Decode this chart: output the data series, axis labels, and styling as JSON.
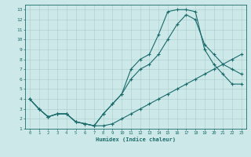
{
  "xlabel": "Humidex (Indice chaleur)",
  "bg_color": "#cde8e8",
  "line_color": "#1a6b6b",
  "grid_color": "#aacccc",
  "xlim": [
    -0.5,
    23.5
  ],
  "ylim": [
    1,
    13.5
  ],
  "xticks": [
    0,
    1,
    2,
    3,
    4,
    5,
    6,
    7,
    8,
    9,
    10,
    11,
    12,
    13,
    14,
    15,
    16,
    17,
    18,
    19,
    20,
    21,
    22,
    23
  ],
  "yticks": [
    1,
    2,
    3,
    4,
    5,
    6,
    7,
    8,
    9,
    10,
    11,
    12,
    13
  ],
  "line1_x": [
    0,
    1,
    2,
    3,
    4,
    5,
    6,
    7,
    8,
    9,
    10,
    11,
    12,
    13,
    14,
    15,
    16,
    17,
    18,
    19,
    20,
    21,
    22,
    23
  ],
  "line1_y": [
    4,
    3,
    2.2,
    2.5,
    2.5,
    1.7,
    1.5,
    1.3,
    2.5,
    3.5,
    4.5,
    7,
    8,
    8.5,
    10.5,
    12.8,
    13,
    13,
    12.8,
    9,
    7.5,
    6.5,
    5.5,
    5.5
  ],
  "line2_x": [
    0,
    1,
    2,
    3,
    4,
    5,
    6,
    7,
    8,
    9,
    10,
    11,
    12,
    13,
    14,
    15,
    16,
    17,
    18,
    19,
    20,
    21,
    22,
    23
  ],
  "line2_y": [
    4,
    3,
    2.2,
    2.5,
    2.5,
    1.7,
    1.5,
    1.3,
    1.3,
    1.5,
    2,
    2.5,
    3,
    3.5,
    4,
    4.5,
    5,
    5.5,
    6,
    6.5,
    7,
    7.5,
    8,
    8.5
  ],
  "line3_x": [
    0,
    1,
    2,
    3,
    4,
    5,
    6,
    7,
    8,
    9,
    10,
    11,
    12,
    13,
    14,
    15,
    16,
    17,
    18,
    19,
    20,
    21,
    22,
    23
  ],
  "line3_y": [
    4,
    3,
    2.2,
    2.5,
    2.5,
    1.7,
    1.5,
    1.3,
    2.5,
    3.5,
    4.5,
    6,
    7,
    7.5,
    8.5,
    10,
    11.5,
    12.5,
    12,
    9.5,
    8.5,
    7.5,
    7,
    6.5
  ]
}
